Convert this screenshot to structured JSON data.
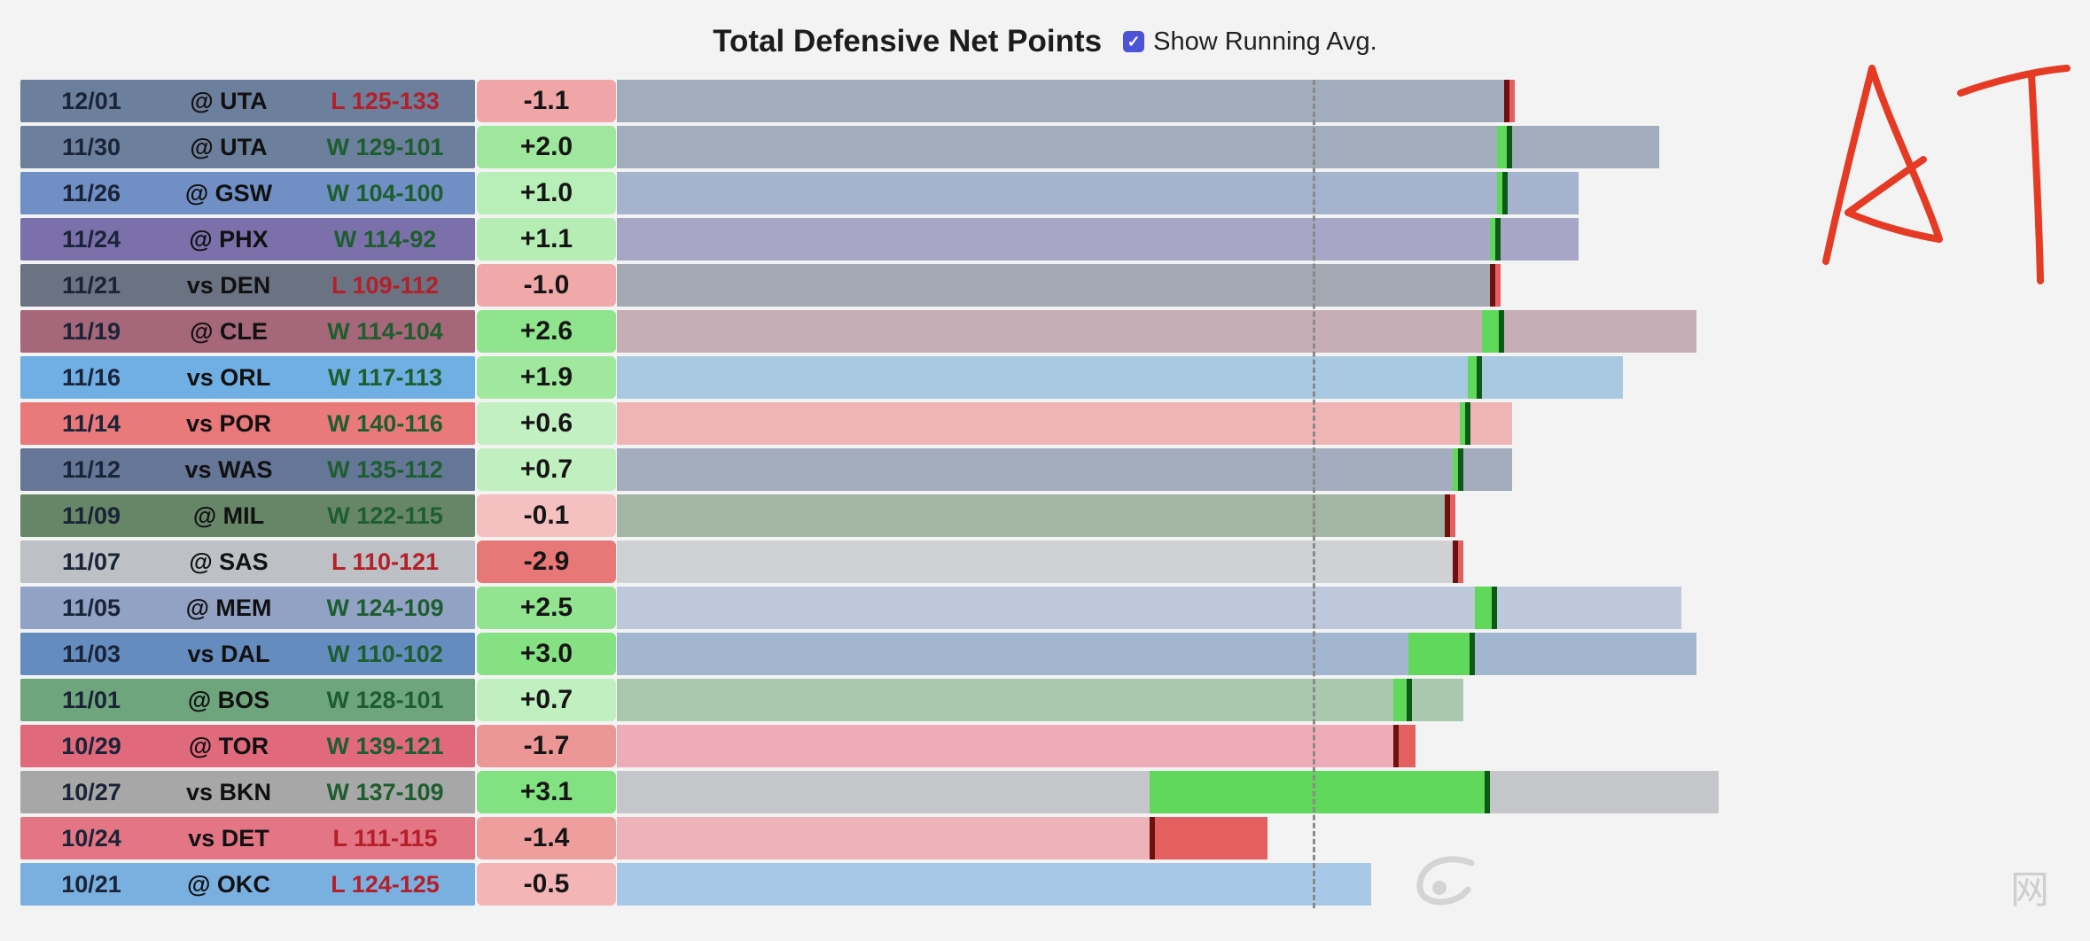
{
  "header": {
    "title": "Total Defensive Net Points",
    "checkbox_checked": true,
    "checkbox_label": "Show Running Avg."
  },
  "colors": {
    "positive_fill": "#5fd85c",
    "negative_fill": "#e45f5f",
    "checkbox": "#4b53d6"
  },
  "watermark": {
    "text": "网"
  },
  "chart_data": {
    "type": "bar",
    "title": "Total Defensive Net Points",
    "xlim": [
      -10.7,
      8.8
    ],
    "series": [
      {
        "values": [
          -1.1,
          2.0,
          1.0,
          1.1,
          -1.0,
          2.6,
          1.9,
          0.6,
          0.7,
          -0.1,
          -2.9,
          2.5,
          3.0,
          0.7,
          -1.7,
          3.1,
          -1.4,
          -0.5
        ]
      }
    ],
    "games": [
      {
        "date": "12/01",
        "opponent": "@ UTA",
        "result": "L 125-133",
        "win": false,
        "value": -1.1,
        "label": "-1.1",
        "avg_before": 1.4,
        "avg_after": 1.3,
        "team_color": "#27436e",
        "row_color": "#a1adbd"
      },
      {
        "date": "11/30",
        "opponent": "@ UTA",
        "result": "W 129-101",
        "win": true,
        "value": 2.0,
        "label": "+2.0",
        "avg_before": 1.2,
        "avg_after": 1.4,
        "team_color": "#27436e",
        "row_color": "#a1adbd"
      },
      {
        "date": "11/26",
        "opponent": "@ GSW",
        "result": "W 104-100",
        "win": true,
        "value": 1.0,
        "label": "+1.0",
        "avg_before": 1.2,
        "avg_after": 1.3,
        "team_color": "#2d5aa8",
        "row_color": "#a6b3ce"
      },
      {
        "date": "11/24",
        "opponent": "@ PHX",
        "result": "W 114-92",
        "win": true,
        "value": 1.1,
        "label": "+1.1",
        "avg_before": 1.1,
        "avg_after": 1.2,
        "team_color": "#3e2d82",
        "row_color": "#a8a6c6"
      },
      {
        "date": "11/21",
        "opponent": "vs DEN",
        "result": "L 109-112",
        "win": false,
        "value": -1.0,
        "label": "-1.0",
        "avg_before": 1.2,
        "avg_after": 1.1,
        "team_color": "#253046",
        "row_color": "#a3a8b3"
      },
      {
        "date": "11/19",
        "opponent": "@ CLE",
        "result": "W 114-104",
        "win": true,
        "value": 2.6,
        "label": "+2.6",
        "avg_before": 1.0,
        "avg_after": 1.3,
        "team_color": "#7a1f3a",
        "row_color": "#c7aeb6"
      },
      {
        "date": "11/16",
        "opponent": "vs ORL",
        "result": "W 117-113",
        "win": true,
        "value": 1.9,
        "label": "+1.9",
        "avg_before": 0.8,
        "avg_after": 1.0,
        "team_color": "#2c89d6",
        "row_color": "#a9c9e3"
      },
      {
        "date": "11/14",
        "opponent": "vs POR",
        "result": "W 140-116",
        "win": true,
        "value": 0.6,
        "label": "+0.6",
        "avg_before": 0.7,
        "avg_after": 0.8,
        "team_color": "#e03a3e",
        "row_color": "#efb5b6"
      },
      {
        "date": "11/12",
        "opponent": "vs WAS",
        "result": "W 135-112",
        "win": true,
        "value": 0.7,
        "label": "+0.7",
        "avg_before": 0.6,
        "avg_after": 0.7,
        "team_color": "#1d3566",
        "row_color": "#a3adbe"
      },
      {
        "date": "11/09",
        "opponent": "@ MIL",
        "result": "W 122-115",
        "win": true,
        "value": -0.1,
        "label": "-0.1",
        "avg_before": 0.6,
        "avg_after": 0.5,
        "team_color": "#1f4d1f",
        "row_color": "#a3b6a3"
      },
      {
        "date": "11/07",
        "opponent": "@ SAS",
        "result": "L 110-121",
        "win": false,
        "value": -2.9,
        "label": "-2.9",
        "avg_before": 0.7,
        "avg_after": 0.6,
        "team_color": "#9ea3a8",
        "row_color": "#cfd1d3"
      },
      {
        "date": "11/05",
        "opponent": "@ MEM",
        "result": "W 124-109",
        "win": true,
        "value": 2.5,
        "label": "+2.5",
        "avg_before": 0.9,
        "avg_after": 1.2,
        "team_color": "#5d76a9",
        "row_color": "#bec8dc"
      },
      {
        "date": "11/03",
        "opponent": "vs DAL",
        "result": "W 110-102",
        "win": true,
        "value": 3.0,
        "label": "+3.0",
        "avg_before": 0.0,
        "avg_after": 0.9,
        "team_color": "#1d56a0",
        "row_color": "#a3b6cf"
      },
      {
        "date": "11/01",
        "opponent": "@ BOS",
        "result": "W 128-101",
        "win": true,
        "value": 0.7,
        "label": "+0.7",
        "avg_before": -0.2,
        "avg_after": 0.05,
        "team_color": "#2a7a3e",
        "row_color": "#a9c8ad"
      },
      {
        "date": "10/29",
        "opponent": "@ TOR",
        "result": "W 139-121",
        "win": true,
        "value": -1.7,
        "label": "-1.7",
        "avg_before": 0.1,
        "avg_after": -0.2,
        "team_color": "#d2243f",
        "row_color": "#eeabb8"
      },
      {
        "date": "10/27",
        "opponent": "vs BKN",
        "result": "W 137-109",
        "win": true,
        "value": 3.1,
        "label": "+3.1",
        "avg_before": -3.5,
        "avg_after": 1.1,
        "team_color": "#7d7d7d",
        "row_color": "#c5c6c9"
      },
      {
        "date": "10/24",
        "opponent": "vs DET",
        "result": "L 111-115",
        "win": false,
        "value": -1.4,
        "label": "-1.4",
        "avg_before": -1.9,
        "avg_after": -3.5,
        "team_color": "#d8344a",
        "row_color": "#eeb3b9"
      },
      {
        "date": "10/21",
        "opponent": "@ OKC",
        "result": "L 124-125",
        "win": false,
        "value": -0.5,
        "label": "-0.5",
        "avg_before": null,
        "avg_after": null,
        "team_color": "#3b8bd1",
        "row_color": "#a7c8e6"
      }
    ]
  }
}
